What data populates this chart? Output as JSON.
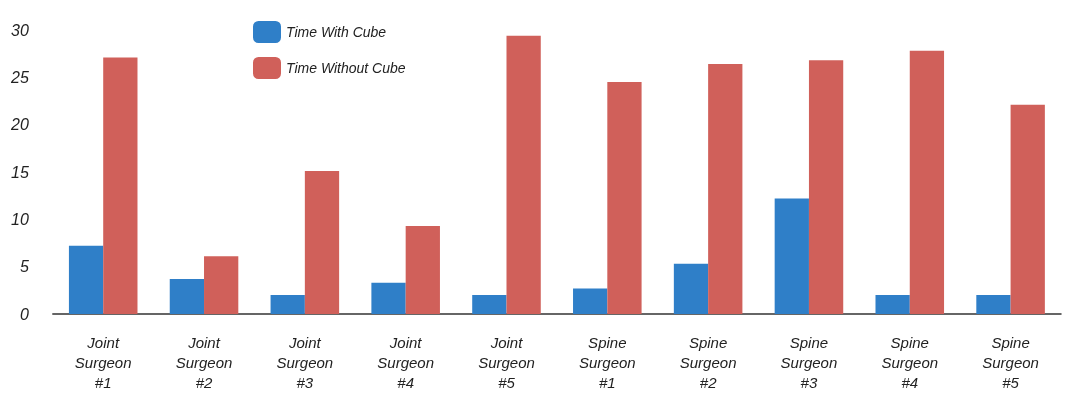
{
  "chart_data": {
    "type": "bar",
    "categories": [
      "Joint Surgeon #1",
      "Joint Surgeon #2",
      "Joint Surgeon #3",
      "Joint Surgeon #4",
      "Joint Surgeon #5",
      "Spine Surgeon #1",
      "Spine Surgeon #2",
      "Spine Surgeon #3",
      "Spine Surgeon #4",
      "Spine Surgeon #5"
    ],
    "series": [
      {
        "name": "Time With Cube",
        "color": "#2f7fc8",
        "values": [
          7.2,
          3.7,
          2.0,
          3.3,
          2.0,
          2.7,
          5.3,
          12.2,
          2.0,
          2.0
        ]
      },
      {
        "name": "Time Without Cube",
        "color": "#d0605a",
        "values": [
          27.1,
          6.1,
          15.1,
          9.3,
          29.4,
          24.5,
          26.4,
          26.8,
          27.8,
          22.1
        ]
      }
    ],
    "ylim": [
      0,
      30
    ],
    "yticks": [
      0,
      5,
      10,
      15,
      20,
      25,
      30
    ],
    "grid": false,
    "legend": "top left"
  }
}
